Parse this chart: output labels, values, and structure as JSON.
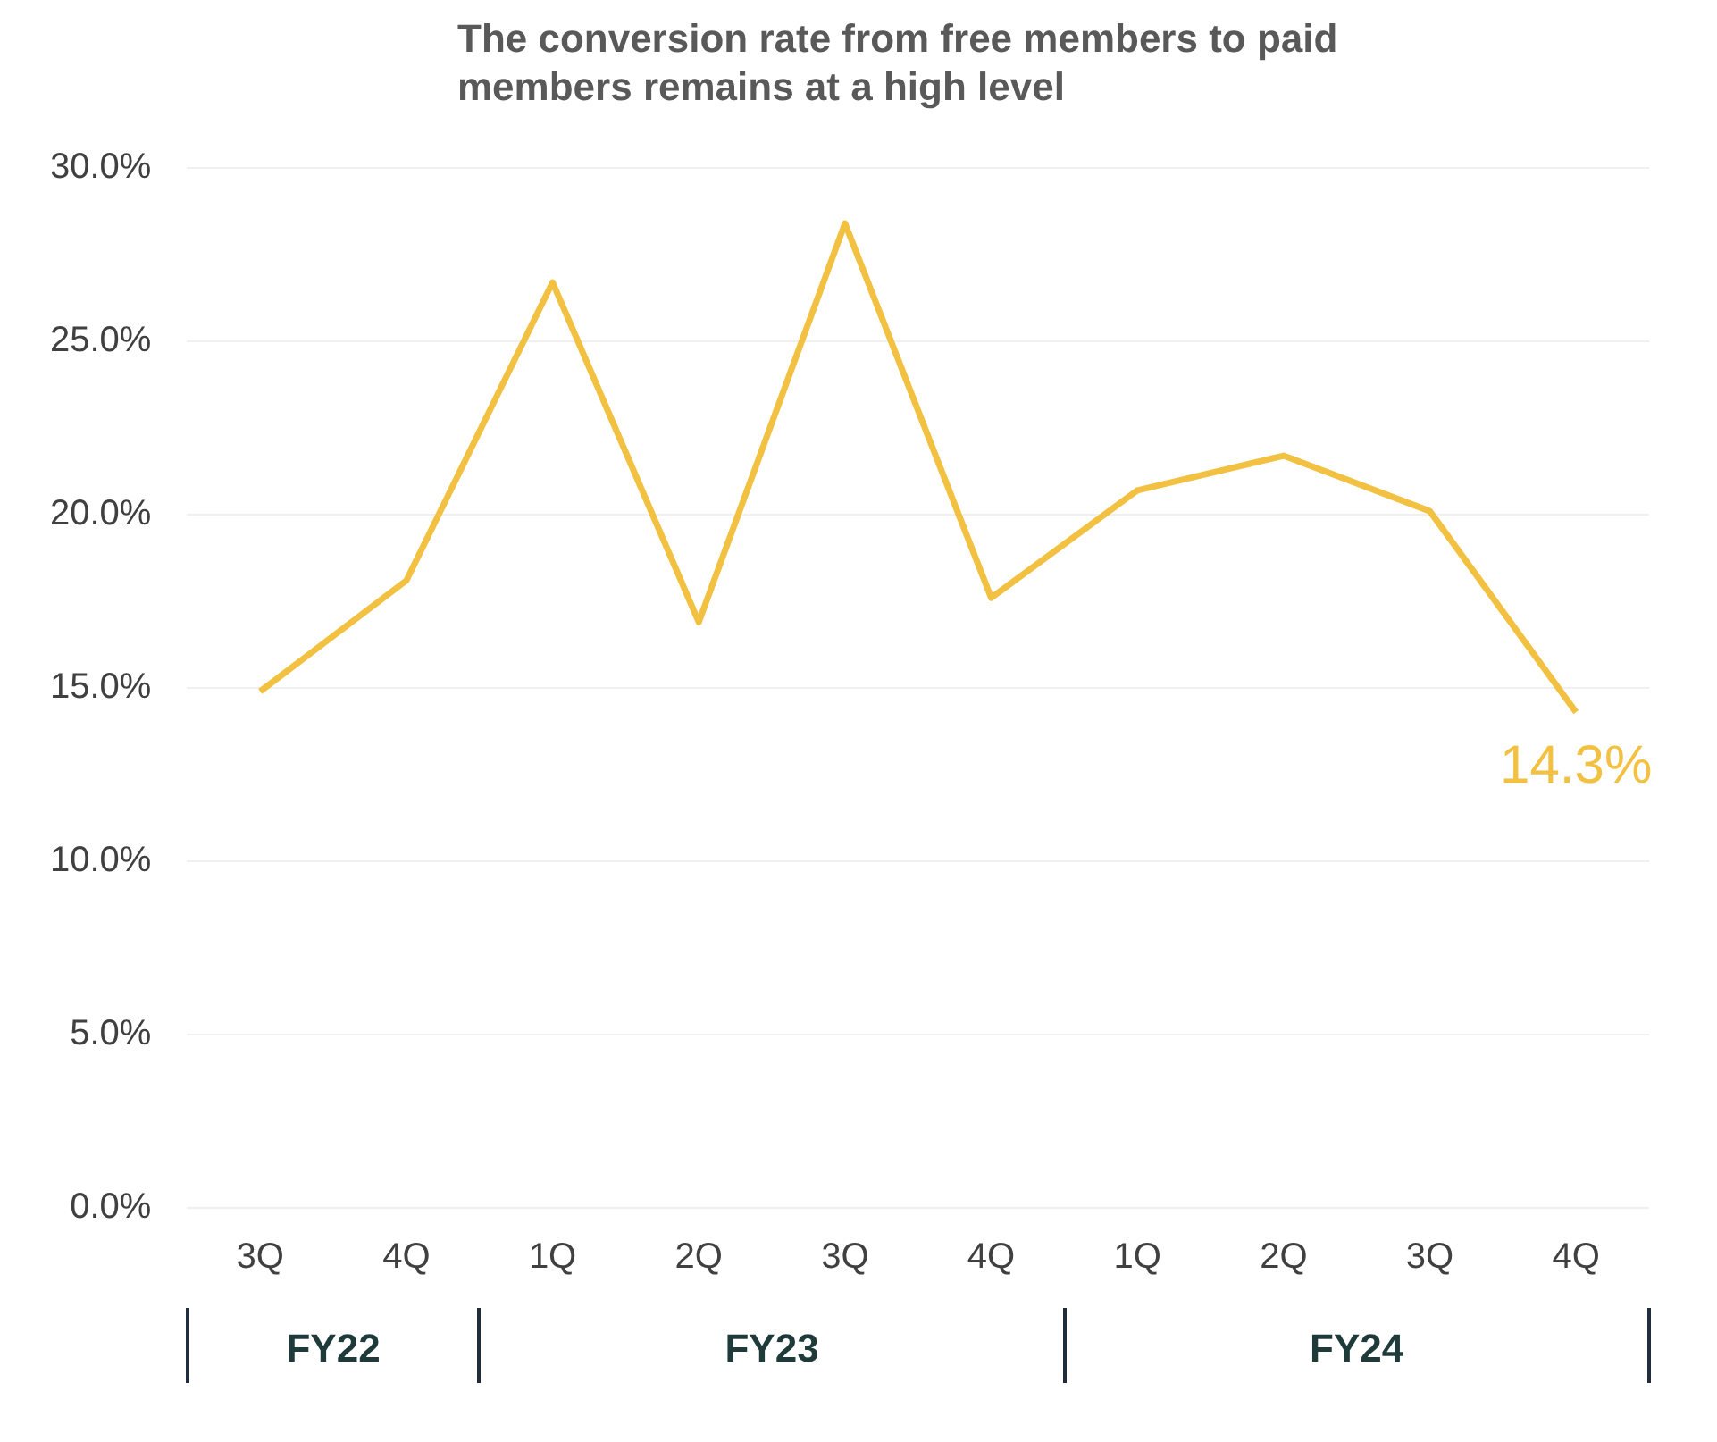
{
  "chart_data": {
    "type": "line",
    "title": "The conversion rate from free members to paid members remains at a high level",
    "categories": [
      "3Q",
      "4Q",
      "1Q",
      "2Q",
      "3Q",
      "4Q",
      "1Q",
      "2Q",
      "3Q",
      "4Q"
    ],
    "series": [
      {
        "color": "#f2c141",
        "values": [
          14.9,
          18.1,
          26.7,
          16.9,
          28.4,
          17.6,
          20.7,
          21.7,
          20.1,
          14.3
        ],
        "value_labels": [
          null,
          null,
          null,
          null,
          null,
          null,
          null,
          null,
          null,
          "14.3%"
        ]
      }
    ],
    "ylim": [
      0,
      30
    ],
    "yticks": [
      {
        "value": 0,
        "label": "0.0%"
      },
      {
        "value": 5,
        "label": "5.0%"
      },
      {
        "value": 10,
        "label": "10.0%"
      },
      {
        "value": 15,
        "label": "15.0%"
      },
      {
        "value": 20,
        "label": "20.0%"
      },
      {
        "value": 25,
        "label": "25.0%"
      },
      {
        "value": 30,
        "label": "30.0%"
      }
    ],
    "grid": "y",
    "legend": false,
    "marker": "none",
    "line_style": "solid",
    "annotations": [
      "FY22",
      "FY23",
      "FY24"
    ]
  }
}
